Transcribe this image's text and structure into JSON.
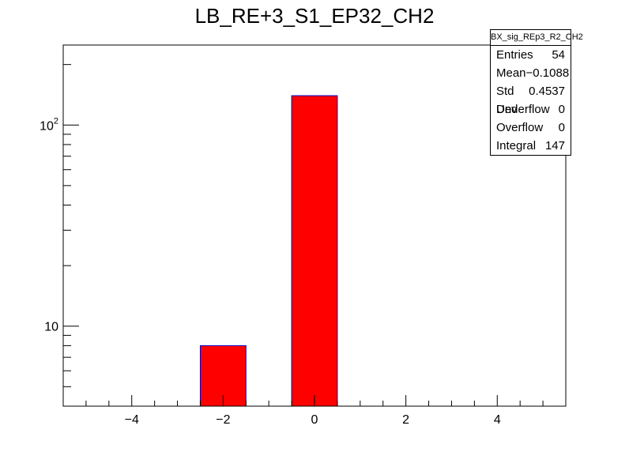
{
  "chart_data": {
    "type": "bar",
    "title": "LB_RE+3_S1_EP32_CH2",
    "xlabel": "",
    "ylabel": "",
    "xlim": [
      -5.5,
      5.5
    ],
    "ylim": [
      4,
      250
    ],
    "log_y": true,
    "bin_width": 1,
    "bins": [
      {
        "center": -2,
        "value": 8
      },
      {
        "center": 0,
        "value": 140
      }
    ],
    "x_ticks": [
      -4,
      -2,
      0,
      2,
      4
    ],
    "x_tick_labels": [
      "−4",
      "−2",
      "0",
      "2",
      "4"
    ],
    "y_ticks": [
      10,
      100
    ],
    "y_tick_labels": [
      "10",
      "10^2"
    ],
    "bar_color": "#ff0000",
    "bar_edge_color": "#0000cc",
    "grid": false
  },
  "stats": {
    "name": "BX_sig_REp3_R2_CH2",
    "rows": [
      {
        "label": "Entries",
        "value": "54"
      },
      {
        "label": "Mean",
        "value": "−0.1088"
      },
      {
        "label": "Std Dev",
        "value": "0.4537"
      },
      {
        "label": "Underflow",
        "value": "0"
      },
      {
        "label": "Overflow",
        "value": "0"
      },
      {
        "label": "Integral",
        "value": "147"
      }
    ]
  }
}
